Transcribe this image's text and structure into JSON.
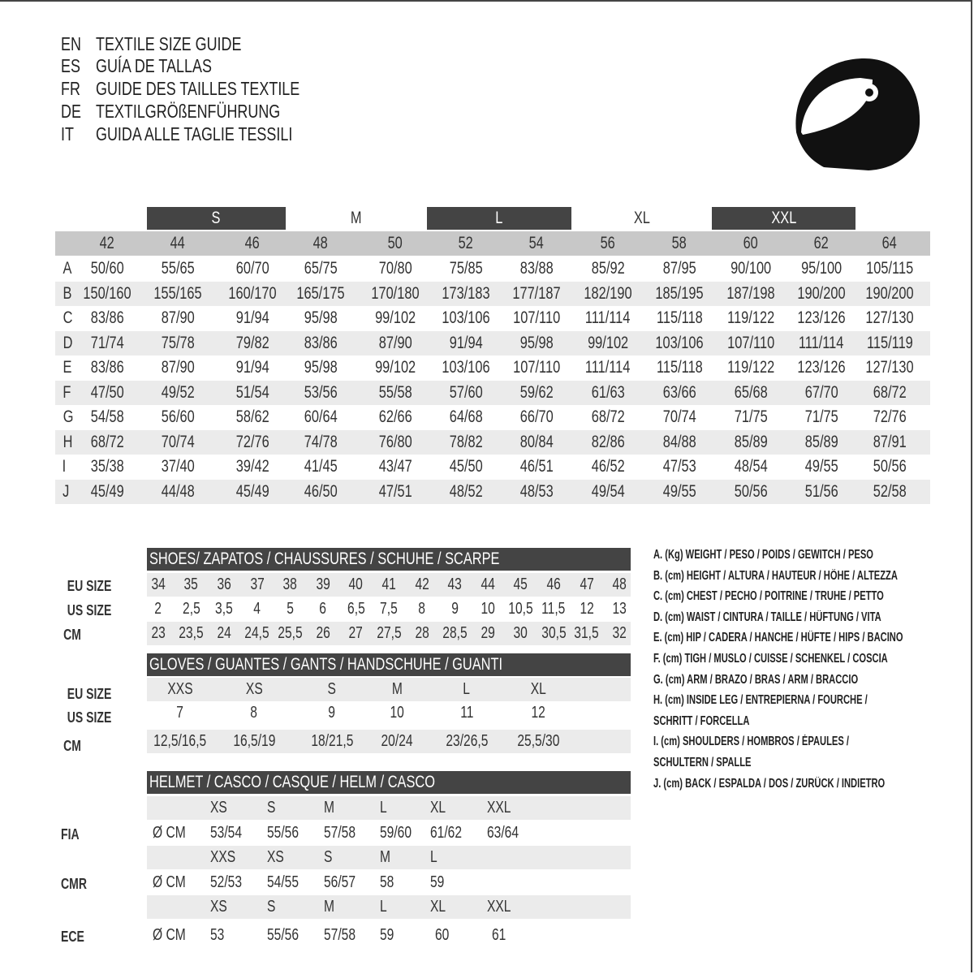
{
  "header": {
    "lines": [
      {
        "code": "EN",
        "text": "TEXTILE SIZE GUIDE"
      },
      {
        "code": "ES",
        "text": "GUÍA DE TALLAS"
      },
      {
        "code": "FR",
        "text": "GUIDE DES TAILLES TEXTILE"
      },
      {
        "code": "DE",
        "text": "TEXTILGRÖßENFÜHRUNG"
      },
      {
        "code": "IT",
        "text": "GUIDA ALLE TAGLIE TESSILI"
      }
    ],
    "icon": "helmet-icon"
  },
  "textile": {
    "groups": [
      "S",
      "M",
      "L",
      "XL",
      "XXL"
    ],
    "sizes": [
      "42",
      "44",
      "46",
      "48",
      "50",
      "52",
      "54",
      "56",
      "58",
      "60",
      "62",
      "64"
    ],
    "rows": [
      {
        "label": "A",
        "values": [
          "50/60",
          "55/65",
          "60/70",
          "65/75",
          "70/80",
          "75/85",
          "83/88",
          "85/92",
          "87/95",
          "90/100",
          "95/100",
          "105/115"
        ]
      },
      {
        "label": "B",
        "values": [
          "150/160",
          "155/165",
          "160/170",
          "165/175",
          "170/180",
          "173/183",
          "177/187",
          "182/190",
          "185/195",
          "187/198",
          "190/200",
          "190/200"
        ]
      },
      {
        "label": "C",
        "values": [
          "83/86",
          "87/90",
          "91/94",
          "95/98",
          "99/102",
          "103/106",
          "107/110",
          "111/114",
          "115/118",
          "119/122",
          "123/126",
          "127/130"
        ]
      },
      {
        "label": "D",
        "values": [
          "71/74",
          "75/78",
          "79/82",
          "83/86",
          "87/90",
          "91/94",
          "95/98",
          "99/102",
          "103/106",
          "107/110",
          "111/114",
          "115/119"
        ]
      },
      {
        "label": "E",
        "values": [
          "83/86",
          "87/90",
          "91/94",
          "95/98",
          "99/102",
          "103/106",
          "107/110",
          "111/114",
          "115/118",
          "119/122",
          "123/126",
          "127/130"
        ]
      },
      {
        "label": "F",
        "values": [
          "47/50",
          "49/52",
          "51/54",
          "53/56",
          "55/58",
          "57/60",
          "59/62",
          "61/63",
          "63/66",
          "65/68",
          "67/70",
          "68/72"
        ]
      },
      {
        "label": "G",
        "values": [
          "54/58",
          "56/60",
          "58/62",
          "60/64",
          "62/66",
          "64/68",
          "66/70",
          "68/72",
          "70/74",
          "71/75",
          "71/75",
          "72/76"
        ]
      },
      {
        "label": "H",
        "values": [
          "68/72",
          "70/74",
          "72/76",
          "74/78",
          "76/80",
          "78/82",
          "80/84",
          "82/86",
          "84/88",
          "85/89",
          "85/89",
          "87/91"
        ]
      },
      {
        "label": "I",
        "values": [
          "35/38",
          "37/40",
          "39/42",
          "41/45",
          "43/47",
          "45/50",
          "46/51",
          "46/52",
          "47/53",
          "48/54",
          "49/55",
          "50/56"
        ]
      },
      {
        "label": "J",
        "values": [
          "45/49",
          "44/48",
          "45/49",
          "46/50",
          "47/51",
          "48/52",
          "48/53",
          "49/54",
          "49/55",
          "50/56",
          "51/56",
          "52/58"
        ]
      }
    ]
  },
  "shoes": {
    "title": "SHOES/ ZAPATOS / CHAUSSURES / SCHUHE / SCARPE",
    "rows": [
      {
        "label": "EU SIZE",
        "values": [
          "34",
          "35",
          "36",
          "37",
          "38",
          "39",
          "40",
          "41",
          "42",
          "43",
          "44",
          "45",
          "46",
          "47",
          "48"
        ]
      },
      {
        "label": "US SIZE",
        "values": [
          "2",
          "2,5",
          "3,5",
          "4",
          "5",
          "6",
          "6,5",
          "7,5",
          "8",
          "9",
          "10",
          "10,5",
          "11,5",
          "12",
          "13"
        ]
      },
      {
        "label": "CM",
        "values": [
          "23",
          "23,5",
          "24",
          "24,5",
          "25,5",
          "26",
          "27",
          "27,5",
          "28",
          "28,5",
          "29",
          "30",
          "30,5",
          "31,5",
          "32"
        ]
      }
    ]
  },
  "gloves": {
    "title": "GLOVES / GUANTES / GANTS / HANDSCHUHE / GUANTI",
    "rows": [
      {
        "label": "EU SIZE",
        "values": [
          "XXS",
          "XS",
          "S",
          "M",
          "L",
          "XL"
        ]
      },
      {
        "label": "US SIZE",
        "values": [
          "7",
          "8",
          "9",
          "10",
          "11",
          "12"
        ]
      },
      {
        "label": "CM",
        "values": [
          "12,5/16,5",
          "16,5/19",
          "18/21,5",
          "20/24",
          "23/26,5",
          "25,5/30"
        ]
      }
    ]
  },
  "helmet": {
    "title": "HELMET / CASCO / CASQUE / HELM / CASCO",
    "unit": "Ø CM",
    "standards": [
      {
        "label": "FIA",
        "sizes": [
          "XS",
          "S",
          "M",
          "L",
          "XL",
          "XXL"
        ],
        "values": [
          "53/54",
          "55/56",
          "57/58",
          "59/60",
          "61/62",
          "63/64"
        ]
      },
      {
        "label": "CMR",
        "sizes": [
          "XXS",
          "XS",
          "S",
          "M",
          "L"
        ],
        "values": [
          "52/53",
          "54/55",
          "56/57",
          "58",
          "59"
        ]
      },
      {
        "label": "ECE",
        "sizes": [
          "XS",
          "S",
          "M",
          "L",
          "XL",
          "XXL"
        ],
        "values": [
          "53",
          "55/56",
          "57/58",
          "59",
          "60",
          "61"
        ]
      }
    ]
  },
  "legend": [
    "A. (Kg) WEIGHT / PESO / POIDS / GEWITCH / PESO",
    "B. (cm) HEIGHT / ALTURA / HAUTEUR / HÖHE / ALTEZZA",
    "C. (cm) CHEST / PECHO / POITRINE / TRUHE / PETTO",
    "D. (cm) WAIST / CINTURA / TAILLE / HÜFTUNG / VITA",
    "E. (cm) HIP / CADERA / HANCHE / HÜFTE / HIPS /  BACINO",
    "F.  (cm) TIGH / MUSLO / CUISSE / SCHENKEL / COSCIA",
    "G. (cm) ARM  / BRAZO / BRAS / ARM / BRACCIO",
    "H. (cm) INSIDE LEG / ENTREPIERNA / FOURCHE /",
    "SCHRITT / FORCELLA",
    "I.  (cm) SHOULDERS / HOMBROS / ÉPAULES /",
    "SCHULTERN / SPALLE",
    "J. (cm) BACK / ESPALDA / DOS / ZURÜCK / INDIETRO"
  ],
  "colors": {
    "dark_bar": "#444444",
    "header_gray": "#c8c8c8",
    "stripe_gray": "#ebebeb"
  }
}
